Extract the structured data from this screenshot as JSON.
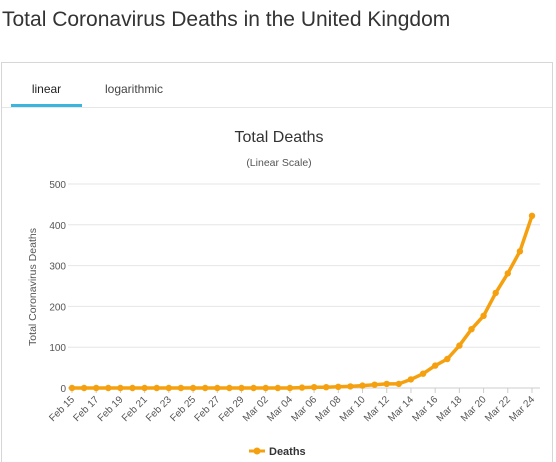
{
  "page": {
    "title": "Total Coronavirus Deaths in the United Kingdom"
  },
  "tabs": [
    {
      "label": "linear",
      "active": true
    },
    {
      "label": "logarithmic",
      "active": false
    }
  ],
  "colors": {
    "series": "#f5a00f",
    "tab_accent": "#3ab5de",
    "grid": "#e6e6e6"
  },
  "chart_data": {
    "type": "line",
    "title": "Total Deaths",
    "subtitle": "(Linear Scale)",
    "ylabel": "Total Coronavirus Deaths",
    "xlabel": "",
    "ylim": [
      0,
      500
    ],
    "yticks": [
      0,
      100,
      200,
      300,
      400,
      500
    ],
    "grid": true,
    "legend": "bottom-center",
    "x": [
      "Feb 15",
      "Feb 16",
      "Feb 17",
      "Feb 18",
      "Feb 19",
      "Feb 20",
      "Feb 21",
      "Feb 22",
      "Feb 23",
      "Feb 24",
      "Feb 25",
      "Feb 26",
      "Feb 27",
      "Feb 28",
      "Feb 29",
      "Mar 01",
      "Mar 02",
      "Mar 03",
      "Mar 04",
      "Mar 05",
      "Mar 06",
      "Mar 07",
      "Mar 08",
      "Mar 09",
      "Mar 10",
      "Mar 11",
      "Mar 12",
      "Mar 13",
      "Mar 14",
      "Mar 15",
      "Mar 16",
      "Mar 17",
      "Mar 18",
      "Mar 19",
      "Mar 20",
      "Mar 21",
      "Mar 22",
      "Mar 23",
      "Mar 24"
    ],
    "x_tick_labels": [
      "Feb 15",
      "Feb 17",
      "Feb 19",
      "Feb 21",
      "Feb 23",
      "Feb 25",
      "Feb 27",
      "Feb 29",
      "Mar 02",
      "Mar 04",
      "Mar 06",
      "Mar 08",
      "Mar 10",
      "Mar 12",
      "Mar 14",
      "Mar 16",
      "Mar 18",
      "Mar 20",
      "Mar 22",
      "Mar 24"
    ],
    "series": [
      {
        "name": "Deaths",
        "values": [
          0,
          0,
          0,
          0,
          0,
          0,
          0,
          0,
          0,
          0,
          0,
          0,
          0,
          0,
          0,
          0,
          0,
          0,
          0,
          1,
          2,
          2,
          3,
          4,
          6,
          8,
          10,
          10,
          21,
          35,
          55,
          71,
          104,
          144,
          177,
          233,
          281,
          335,
          422
        ]
      }
    ]
  }
}
